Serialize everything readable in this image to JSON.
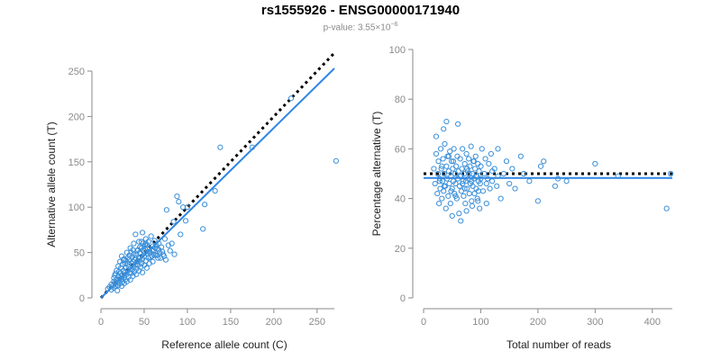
{
  "title": "rs1555926 - ENSG00000171940",
  "subtitle": {
    "prefix": "p-value: 3.55×10",
    "exponent": "−6"
  },
  "colors": {
    "points": "#3a8fd9",
    "fit_line": "#2f86e6",
    "reference_line": "#000000",
    "axis": "#8a8a8a"
  },
  "chart_data": [
    {
      "type": "scatter",
      "xlabel": "Reference allele count (C)",
      "ylabel": "Alternative allele count (T)",
      "xlim": [
        0,
        270
      ],
      "ylim": [
        0,
        250
      ],
      "xticks": [
        0,
        50,
        100,
        150,
        200,
        250
      ],
      "yticks": [
        0,
        50,
        100,
        150,
        200,
        250
      ],
      "grid": false,
      "lines": [
        {
          "style": "dotted",
          "color": "#000000",
          "x": [
            0,
            270
          ],
          "y": [
            0,
            270
          ]
        },
        {
          "style": "solid",
          "color": "#2f86e6",
          "x": [
            0,
            270
          ],
          "y": [
            0,
            253
          ]
        }
      ],
      "points": [
        [
          8,
          10
        ],
        [
          10,
          12
        ],
        [
          12,
          9
        ],
        [
          12,
          15
        ],
        [
          14,
          14
        ],
        [
          15,
          11
        ],
        [
          15,
          18
        ],
        [
          16,
          16
        ],
        [
          17,
          13
        ],
        [
          18,
          20
        ],
        [
          19,
          17
        ],
        [
          20,
          14
        ],
        [
          20,
          24
        ],
        [
          21,
          19
        ],
        [
          22,
          22
        ],
        [
          22,
          16
        ],
        [
          23,
          27
        ],
        [
          24,
          21
        ],
        [
          24,
          13
        ],
        [
          25,
          25
        ],
        [
          25,
          18
        ],
        [
          26,
          30
        ],
        [
          27,
          23
        ],
        [
          27,
          16
        ],
        [
          28,
          28
        ],
        [
          28,
          20
        ],
        [
          29,
          33
        ],
        [
          30,
          26
        ],
        [
          30,
          18
        ],
        [
          31,
          30
        ],
        [
          31,
          38
        ],
        [
          32,
          23
        ],
        [
          32,
          35
        ],
        [
          33,
          28
        ],
        [
          33,
          42
        ],
        [
          34,
          32
        ],
        [
          34,
          20
        ],
        [
          35,
          38
        ],
        [
          35,
          27
        ],
        [
          36,
          45
        ],
        [
          36,
          31
        ],
        [
          37,
          24
        ],
        [
          37,
          40
        ],
        [
          38,
          34
        ],
        [
          38,
          48
        ],
        [
          39,
          29
        ],
        [
          40,
          37
        ],
        [
          40,
          44
        ],
        [
          41,
          32
        ],
        [
          41,
          26
        ],
        [
          42,
          40
        ],
        [
          42,
          52
        ],
        [
          43,
          36
        ],
        [
          44,
          30
        ],
        [
          44,
          45
        ],
        [
          45,
          41
        ],
        [
          45,
          56
        ],
        [
          46,
          34
        ],
        [
          46,
          49
        ],
        [
          47,
          38
        ],
        [
          47,
          62
        ],
        [
          48,
          43
        ],
        [
          48,
          28
        ],
        [
          49,
          52
        ],
        [
          50,
          46
        ],
        [
          50,
          36
        ],
        [
          51,
          58
        ],
        [
          52,
          41
        ],
        [
          52,
          65
        ],
        [
          53,
          49
        ],
        [
          53,
          33
        ],
        [
          54,
          55
        ],
        [
          55,
          44
        ],
        [
          55,
          62
        ],
        [
          56,
          38
        ],
        [
          57,
          50
        ],
        [
          58,
          68
        ],
        [
          59,
          46
        ],
        [
          60,
          57
        ],
        [
          60,
          40
        ],
        [
          61,
          52
        ],
        [
          62,
          63
        ],
        [
          63,
          47
        ],
        [
          64,
          58
        ],
        [
          65,
          54
        ],
        [
          66,
          44
        ],
        [
          67,
          60
        ],
        [
          68,
          50
        ],
        [
          70,
          56
        ],
        [
          72,
          48
        ],
        [
          74,
          65
        ],
        [
          75,
          42
        ],
        [
          78,
          58
        ],
        [
          80,
          52
        ],
        [
          82,
          60
        ],
        [
          85,
          48
        ],
        [
          16,
          25
        ],
        [
          18,
          30
        ],
        [
          20,
          35
        ],
        [
          22,
          40
        ],
        [
          24,
          46
        ],
        [
          26,
          42
        ],
        [
          28,
          38
        ],
        [
          30,
          50
        ],
        [
          34,
          55
        ],
        [
          38,
          60
        ],
        [
          40,
          70
        ],
        [
          44,
          62
        ],
        [
          48,
          72
        ],
        [
          52,
          60
        ],
        [
          15,
          22
        ],
        [
          17,
          27
        ],
        [
          19,
          8
        ],
        [
          21,
          29
        ],
        [
          23,
          33
        ],
        [
          25,
          37
        ],
        [
          27,
          43
        ],
        [
          29,
          41
        ],
        [
          31,
          44
        ],
        [
          33,
          47
        ],
        [
          35,
          50
        ],
        [
          37,
          53
        ],
        [
          39,
          42
        ],
        [
          41,
          47
        ],
        [
          43,
          53
        ],
        [
          45,
          50
        ],
        [
          47,
          55
        ],
        [
          49,
          60
        ],
        [
          51,
          54
        ],
        [
          53,
          58
        ],
        [
          55,
          51
        ],
        [
          57,
          45
        ],
        [
          59,
          52
        ],
        [
          61,
          48
        ],
        [
          63,
          55
        ],
        [
          65,
          47
        ],
        [
          67,
          53
        ],
        [
          69,
          44
        ],
        [
          71,
          51
        ],
        [
          73,
          46
        ],
        [
          76,
          97
        ],
        [
          88,
          112
        ],
        [
          90,
          106
        ],
        [
          98,
          85
        ],
        [
          92,
          70
        ],
        [
          95,
          100
        ],
        [
          120,
          103
        ],
        [
          118,
          76
        ],
        [
          132,
          118
        ],
        [
          138,
          166
        ],
        [
          175,
          166
        ],
        [
          220,
          220
        ],
        [
          272,
          151
        ],
        [
          84,
          84
        ],
        [
          100,
          100
        ]
      ]
    },
    {
      "type": "scatter",
      "xlabel": "Total number of reads",
      "ylabel": "Percentage alternative (T)",
      "xlim": [
        0,
        435
      ],
      "ylim": [
        0,
        100
      ],
      "xticks": [
        0,
        100,
        200,
        300,
        400
      ],
      "yticks": [
        0,
        20,
        40,
        60,
        80,
        100
      ],
      "grid": false,
      "lines": [
        {
          "style": "dotted",
          "color": "#000000",
          "x": [
            0,
            435
          ],
          "y": [
            50,
            50
          ]
        },
        {
          "style": "solid",
          "color": "#2f86e6",
          "x": [
            0,
            435
          ],
          "y": [
            48.3,
            48.3
          ]
        }
      ],
      "points": [
        [
          18,
          52
        ],
        [
          20,
          46
        ],
        [
          22,
          58
        ],
        [
          24,
          42
        ],
        [
          25,
          50
        ],
        [
          26,
          55
        ],
        [
          27,
          38
        ],
        [
          28,
          48
        ],
        [
          29,
          44
        ],
        [
          30,
          60
        ],
        [
          31,
          52
        ],
        [
          32,
          40
        ],
        [
          33,
          47
        ],
        [
          34,
          56
        ],
        [
          35,
          43
        ],
        [
          36,
          50
        ],
        [
          37,
          62
        ],
        [
          38,
          45
        ],
        [
          39,
          36
        ],
        [
          40,
          53
        ],
        [
          41,
          48
        ],
        [
          42,
          57
        ],
        [
          43,
          41
        ],
        [
          44,
          51
        ],
        [
          45,
          46
        ],
        [
          46,
          59
        ],
        [
          47,
          38
        ],
        [
          48,
          49
        ],
        [
          49,
          55
        ],
        [
          50,
          44
        ],
        [
          51,
          52
        ],
        [
          52,
          47
        ],
        [
          53,
          60
        ],
        [
          54,
          42
        ],
        [
          55,
          50
        ],
        [
          56,
          46
        ],
        [
          57,
          53
        ],
        [
          58,
          40
        ],
        [
          59,
          57
        ],
        [
          60,
          48
        ],
        [
          61,
          51
        ],
        [
          62,
          34
        ],
        [
          63,
          45
        ],
        [
          64,
          56
        ],
        [
          65,
          49
        ],
        [
          66,
          43
        ],
        [
          67,
          52
        ],
        [
          68,
          60
        ],
        [
          69,
          47
        ],
        [
          70,
          41
        ],
        [
          71,
          50
        ],
        [
          72,
          54
        ],
        [
          73,
          38
        ],
        [
          74,
          47
        ],
        [
          75,
          58
        ],
        [
          76,
          44
        ],
        [
          77,
          51
        ],
        [
          78,
          48
        ],
        [
          79,
          56
        ],
        [
          80,
          42
        ],
        [
          81,
          53
        ],
        [
          82,
          46
        ],
        [
          83,
          61
        ],
        [
          84,
          39
        ],
        [
          85,
          50
        ],
        [
          86,
          45
        ],
        [
          87,
          55
        ],
        [
          88,
          48
        ],
        [
          89,
          42
        ],
        [
          90,
          52
        ],
        [
          91,
          57
        ],
        [
          92,
          44
        ],
        [
          93,
          49
        ],
        [
          94,
          40
        ],
        [
          95,
          54
        ],
        [
          96,
          47
        ],
        [
          97,
          51
        ],
        [
          98,
          36
        ],
        [
          99,
          46
        ],
        [
          100,
          53
        ],
        [
          102,
          60
        ],
        [
          104,
          43
        ],
        [
          106,
          50
        ],
        [
          108,
          56
        ],
        [
          110,
          38
        ],
        [
          112,
          48
        ],
        [
          114,
          54
        ],
        [
          116,
          44
        ],
        [
          118,
          58
        ],
        [
          120,
          47
        ],
        [
          124,
          52
        ],
        [
          128,
          45
        ],
        [
          130,
          60
        ],
        [
          135,
          40
        ],
        [
          140,
          50
        ],
        [
          145,
          55
        ],
        [
          150,
          46
        ],
        [
          155,
          52
        ],
        [
          160,
          44
        ],
        [
          170,
          57
        ],
        [
          175,
          50
        ],
        [
          185,
          47
        ],
        [
          200,
          39
        ],
        [
          205,
          53
        ],
        [
          210,
          55
        ],
        [
          230,
          45
        ],
        [
          235,
          48
        ],
        [
          250,
          47
        ],
        [
          300,
          54
        ],
        [
          340,
          49
        ],
        [
          425,
          36
        ],
        [
          432,
          50
        ],
        [
          40,
          71
        ],
        [
          60,
          70
        ],
        [
          22,
          65
        ],
        [
          35,
          68
        ],
        [
          50,
          33
        ],
        [
          65,
          31
        ],
        [
          75,
          35
        ],
        [
          85,
          37
        ],
        [
          95,
          39
        ],
        [
          28,
          47
        ],
        [
          32,
          53
        ],
        [
          36,
          45
        ],
        [
          44,
          57
        ],
        [
          48,
          43
        ],
        [
          52,
          55
        ],
        [
          56,
          41
        ],
        [
          64,
          49
        ],
        [
          68,
          46
        ],
        [
          72,
          44
        ],
        [
          76,
          52
        ],
        [
          80,
          50
        ],
        [
          84,
          47
        ],
        [
          88,
          55
        ],
        [
          92,
          49
        ],
        [
          96,
          43
        ],
        [
          100,
          48
        ],
        [
          110,
          46
        ],
        [
          120,
          51
        ],
        [
          130,
          49
        ]
      ]
    }
  ]
}
